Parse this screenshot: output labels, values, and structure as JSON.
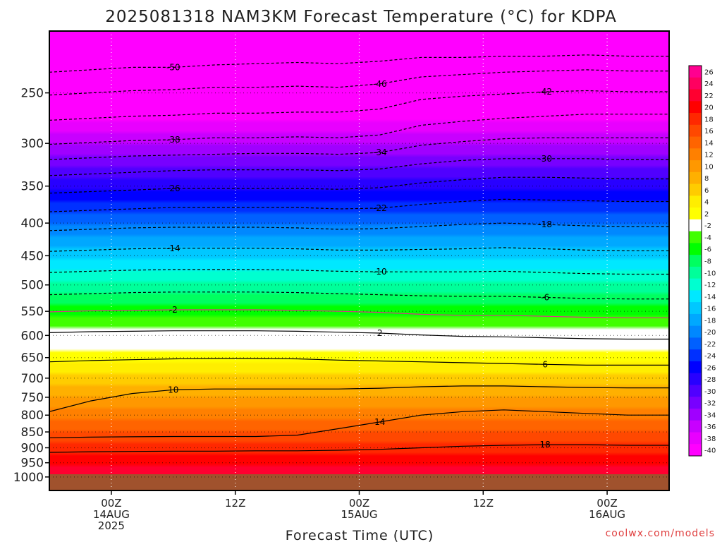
{
  "chart_data": {
    "type": "heatmap",
    "title": "2025081318 NAM3KM Forecast Temperature (°C) for KDPA",
    "xlabel": "Forecast Time (UTC)",
    "ylabel": "",
    "credit": "coolwx.com/models",
    "x_ticks": [
      {
        "hour": 6,
        "lines": [
          "00Z",
          "14AUG",
          "2025"
        ]
      },
      {
        "hour": 18,
        "lines": [
          "12Z"
        ]
      },
      {
        "hour": 30,
        "lines": [
          "00Z",
          "15AUG"
        ]
      },
      {
        "hour": 42,
        "lines": [
          "12Z"
        ]
      },
      {
        "hour": 54,
        "lines": [
          "00Z",
          "16AUG"
        ]
      }
    ],
    "xlim": [
      0,
      60
    ],
    "y_ticks": [
      250,
      300,
      350,
      400,
      450,
      500,
      550,
      600,
      650,
      700,
      750,
      800,
      850,
      900,
      950,
      1000
    ],
    "y_scale": "log-pressure (inverted)",
    "ylim": [
      1050,
      200
    ],
    "colorbar_labels": [
      26,
      24,
      22,
      20,
      18,
      16,
      14,
      12,
      10,
      8,
      6,
      4,
      2,
      -2,
      -4,
      -6,
      -8,
      -10,
      -12,
      -14,
      -16,
      -18,
      -20,
      -22,
      -24,
      -26,
      -28,
      -30,
      -32,
      -34,
      -36,
      -38,
      -40
    ],
    "colorbar_colors": [
      "#ff0090",
      "#ff0060",
      "#ff0030",
      "#ff0000",
      "#ff2800",
      "#ff4800",
      "#ff6400",
      "#ff8000",
      "#ff9800",
      "#ffb000",
      "#ffcc00",
      "#ffee00",
      "#ffff00",
      "#ffffff",
      "#40ff00",
      "#00ff00",
      "#00ff60",
      "#00ff9a",
      "#00ffd0",
      "#00e8ff",
      "#00c8ff",
      "#00a8ff",
      "#0088ff",
      "#0060ff",
      "#0030ff",
      "#0000ff",
      "#2800ff",
      "#5000ff",
      "#7800ff",
      "#a000ff",
      "#c800ff",
      "#e800ff",
      "#ff00ff"
    ],
    "surface_color": "#a0522d",
    "isotherms": [
      {
        "value": "-50",
        "pressures": [
          232,
          230,
          228,
          228,
          226,
          225,
          224,
          225,
          223,
          220,
          220,
          219,
          219,
          218,
          219,
          219
        ]
      },
      {
        "value": "-46",
        "pressures": [
          252,
          250,
          248,
          247,
          245,
          245,
          244,
          245,
          242,
          236,
          234,
          232,
          231,
          230,
          231,
          231
        ]
      },
      {
        "value": "-42",
        "pressures": [
          276,
          274,
          272,
          271,
          269,
          269,
          268,
          268,
          265,
          256,
          253,
          251,
          249,
          248,
          249,
          249
        ]
      },
      {
        "value": "-38",
        "pressures": [
          301,
          299,
          297,
          296,
          294,
          294,
          293,
          294,
          291,
          281,
          277,
          274,
          272,
          270,
          270,
          270
        ]
      },
      {
        "value": "-34",
        "pressures": [
          318,
          316,
          314,
          313,
          312,
          311,
          311,
          312,
          310,
          302,
          298,
          295,
          294,
          294,
          294,
          294
        ]
      },
      {
        "value": "-30",
        "pressures": [
          337,
          335,
          333,
          331,
          330,
          330,
          330,
          331,
          329,
          323,
          319,
          317,
          317,
          317,
          318,
          318
        ]
      },
      {
        "value": "-26",
        "pressures": [
          359,
          357,
          355,
          353,
          353,
          353,
          353,
          354,
          352,
          346,
          342,
          339,
          339,
          340,
          341,
          341
        ]
      },
      {
        "value": "-22",
        "pressures": [
          384,
          382,
          380,
          378,
          378,
          378,
          378,
          380,
          379,
          374,
          370,
          367,
          368,
          369,
          370,
          370
        ]
      },
      {
        "value": "-18",
        "pressures": [
          411,
          409,
          407,
          406,
          406,
          406,
          407,
          409,
          408,
          405,
          402,
          400,
          402,
          404,
          405,
          405
        ]
      },
      {
        "value": "-14",
        "pressures": [
          443,
          441,
          439,
          438,
          438,
          438,
          439,
          441,
          441,
          440,
          439,
          437,
          439,
          441,
          442,
          442
        ]
      },
      {
        "value": "-10",
        "pressures": [
          478,
          476,
          474,
          473,
          473,
          473,
          474,
          476,
          477,
          477,
          477,
          476,
          478,
          480,
          481,
          481
        ]
      },
      {
        "value": "-6",
        "pressures": [
          518,
          516,
          514,
          513,
          513,
          513,
          514,
          516,
          518,
          520,
          521,
          521,
          523,
          525,
          526,
          526
        ]
      },
      {
        "value": "-2",
        "pressures": [
          551,
          549,
          548,
          547,
          547,
          547,
          548,
          550,
          552,
          556,
          558,
          558,
          560,
          562,
          563,
          563
        ]
      },
      {
        "value": "2",
        "pressures": [
          594,
          592,
          591,
          590,
          590,
          590,
          591,
          593,
          595,
          599,
          602,
          603,
          605,
          607,
          608,
          608
        ]
      },
      {
        "value": "6",
        "pressures": [
          660,
          657,
          655,
          653,
          652,
          652,
          653,
          656,
          658,
          660,
          662,
          664,
          666,
          668,
          668,
          668
        ]
      },
      {
        "value": "10",
        "pressures": [
          790,
          760,
          740,
          730,
          728,
          728,
          728,
          728,
          726,
          722,
          720,
          720,
          722,
          724,
          725,
          725
        ]
      },
      {
        "value": "14",
        "pressures": [
          868,
          866,
          865,
          864,
          864,
          864,
          860,
          840,
          820,
          800,
          790,
          785,
          790,
          795,
          800,
          800
        ]
      },
      {
        "value": "18",
        "pressures": [
          915,
          913,
          912,
          911,
          911,
          910,
          910,
          908,
          905,
          900,
          895,
          892,
          890,
          890,
          892,
          892
        ]
      }
    ],
    "grid": true,
    "colorbar_position": "right"
  }
}
